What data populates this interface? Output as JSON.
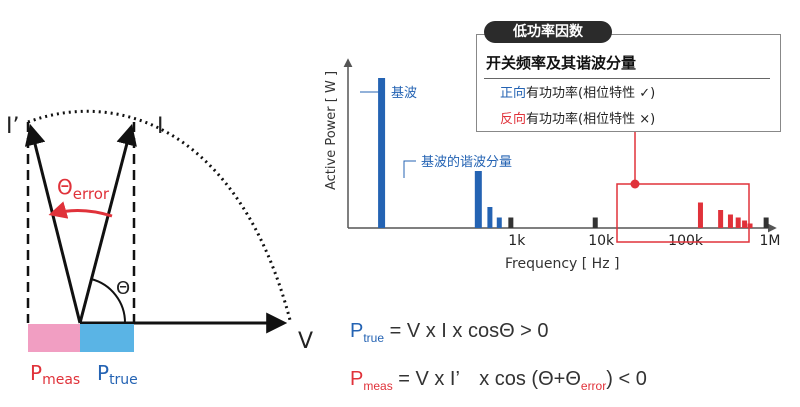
{
  "info_box": {
    "title": "低功率因数",
    "heading": "开关频率及其谐波分量",
    "line1_prefix": "正向",
    "line1_text": "有功功率(相位特性 ✓)",
    "line2_prefix": "反向",
    "line2_text": "有功功率(相位特性 ×)"
  },
  "phasor": {
    "label_i_prime": "I’",
    "label_i": "I",
    "label_theta_error_symbol": "Θ",
    "label_theta_error_sub": "error",
    "label_theta": "Θ",
    "label_v": "V",
    "label_p_meas": "P",
    "label_p_meas_sub": "meas",
    "label_p_true": "P",
    "label_p_true_sub": "true",
    "colors": {
      "meas": "#f19ec2",
      "true": "#5ab4e5",
      "error": "#e0323a",
      "true_text": "#2463b3"
    }
  },
  "chart_data": {
    "type": "bar",
    "ylabel": "Active Power [ W ]",
    "xlabel": "Frequency [ Hz ]",
    "x_scale": "log",
    "x_ticks": [
      "1k",
      "10k",
      "100k",
      "1M"
    ],
    "annotations": {
      "fundamental": "基波",
      "fundamental_harmonics": "基波的谐波分量"
    },
    "series": [
      {
        "color": "#2463b3",
        "bars": [
          {
            "x": 25,
            "y": 100
          },
          {
            "x": 350,
            "y": 38
          },
          {
            "x": 480,
            "y": 14
          },
          {
            "x": 620,
            "y": 7
          }
        ]
      },
      {
        "color": "#333333",
        "bars": [
          {
            "x": 850,
            "y": 7
          },
          {
            "x": 8500,
            "y": 7
          },
          {
            "x": 900000,
            "y": 7
          }
        ]
      },
      {
        "color": "#e0323a",
        "bars": [
          {
            "x": 150000,
            "y": 17
          },
          {
            "x": 260000,
            "y": 12
          },
          {
            "x": 340000,
            "y": 9
          },
          {
            "x": 420000,
            "y": 7
          },
          {
            "x": 500000,
            "y": 5
          },
          {
            "x": 580000,
            "y": 3
          }
        ]
      }
    ]
  },
  "formulas": {
    "f1_p": "P",
    "f1_sub": "true",
    "f1_rest": " = V x I x cosΘ > 0",
    "f2_p": "P",
    "f2_sub": "meas",
    "f2_mid": " = V x I’　x cos (Θ+Θ",
    "f2_sub2": "error",
    "f2_end": ") < 0"
  }
}
